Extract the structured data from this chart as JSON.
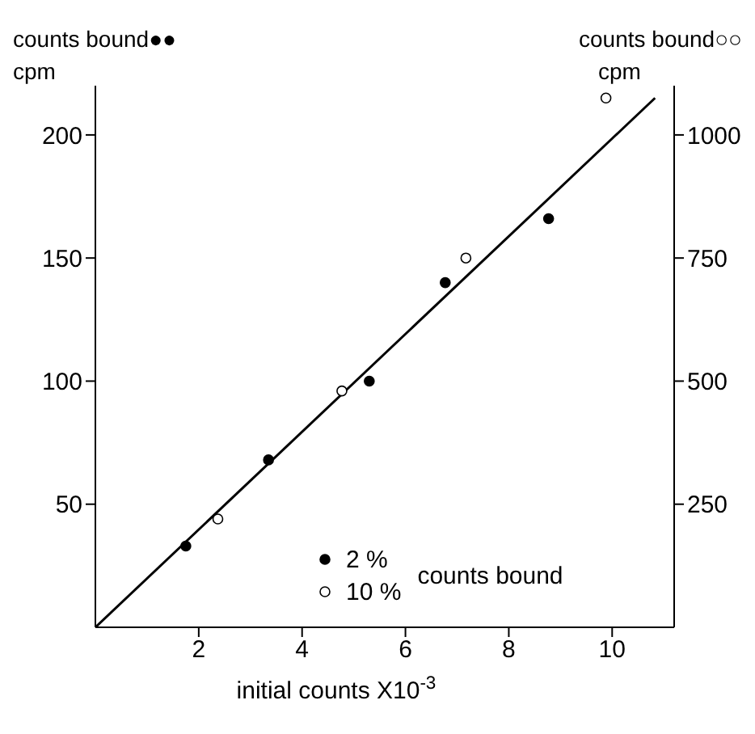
{
  "chart_data": {
    "type": "scatter",
    "xlabel": "initial counts X10$^{-3}$",
    "ylabel": "counts bound●●\ncpm",
    "y2label": "counts bound○○\ncpm",
    "legend_title": "counts bound",
    "legend": "bottom",
    "xlim": [
      0,
      11.2
    ],
    "xticks": [
      2,
      4,
      6,
      8,
      10
    ],
    "ylim": [
      0,
      220
    ],
    "yticks": [
      50,
      100,
      150,
      200
    ],
    "y2lim": [
      0,
      1100
    ],
    "y2ticks": [
      250,
      500,
      750,
      1000
    ],
    "series": [
      {
        "type": "line",
        "color": "#000000",
        "x": [
          0,
          10.83
        ],
        "values": [
          0,
          215
        ],
        "marker": "none",
        "line_style": "solid"
      },
      {
        "name": "2 %",
        "color": "#000000",
        "x": [
          1.75,
          3.35,
          5.3,
          6.77,
          8.77
        ],
        "values": [
          33,
          68,
          100,
          140,
          166
        ],
        "marker": "circle"
      },
      {
        "name": "10 %",
        "color": "#ffffff",
        "axis": "y2",
        "x": [
          2.37,
          4.77,
          7.17,
          9.88
        ],
        "values": [
          220,
          480,
          750,
          1075
        ],
        "marker": "circle"
      }
    ]
  }
}
